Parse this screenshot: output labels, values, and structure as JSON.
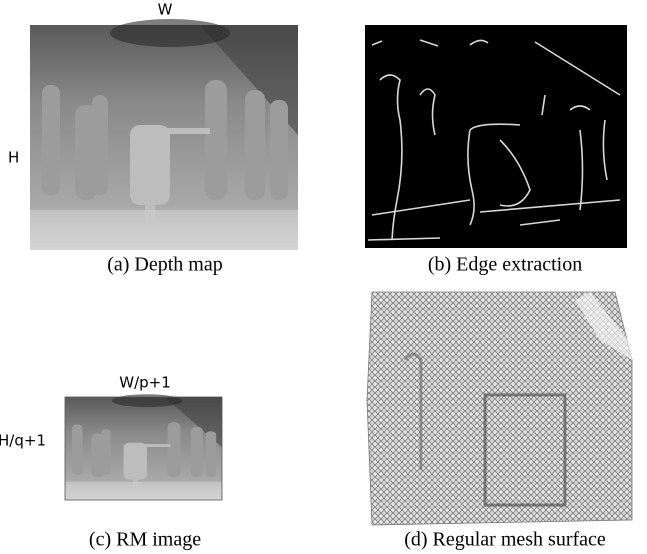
{
  "panels": [
    {
      "caption": "(a) Depth map",
      "width_label": "W",
      "height_label": "H"
    },
    {
      "caption": "(b) Edge extraction"
    },
    {
      "caption": "(c) RM image",
      "width_label": "W/p+1",
      "height_label": "H/q+1"
    },
    {
      "caption": "(d) Regular mesh surface"
    }
  ]
}
